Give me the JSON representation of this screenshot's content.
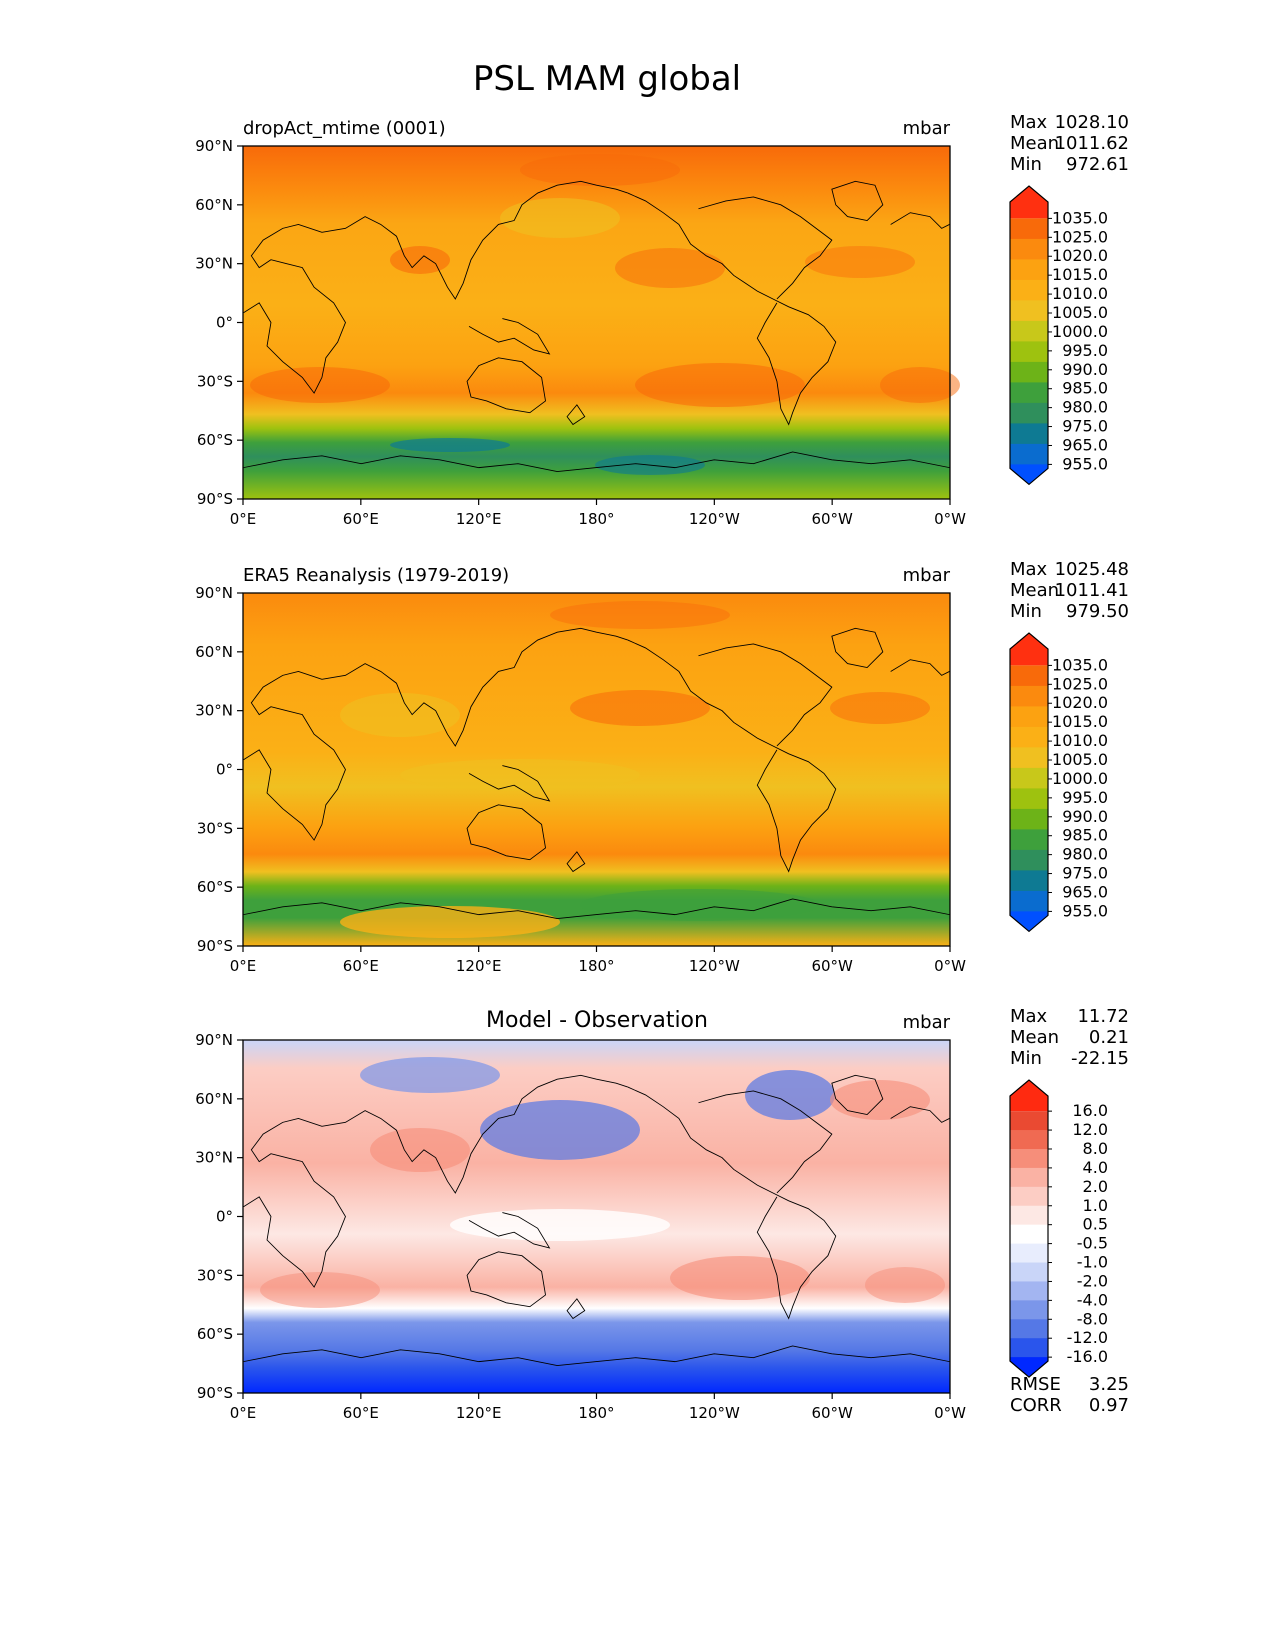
{
  "figure": {
    "title": "PSL MAM global"
  },
  "colors": {
    "abs_bins": [
      "#0050ff",
      "#0a6ccf",
      "#0e7a93",
      "#2f8f5c",
      "#3ea03c",
      "#6db318",
      "#9ec20f",
      "#c8c81a",
      "#f0c020",
      "#fbb016",
      "#fca211",
      "#fb8a0e",
      "#f86a0a",
      "#ff3010"
    ],
    "diff_bins": [
      "#0028ff",
      "#2a55ec",
      "#5578e6",
      "#7b96ea",
      "#a3b5f1",
      "#c9d5f8",
      "#e8edfd",
      "#ffffff",
      "#fde8e4",
      "#fccdc4",
      "#fab2a4",
      "#f68e7a",
      "#f06a52",
      "#ea4a32",
      "#ff2a10"
    ],
    "coast": "#000000"
  },
  "ticks": {
    "lon": [
      "0°E",
      "60°E",
      "120°E",
      "180°",
      "120°W",
      "60°W",
      "0°W"
    ],
    "lat": [
      "90°N",
      "60°N",
      "30°N",
      "0°",
      "30°S",
      "60°S",
      "90°S"
    ]
  },
  "panels": [
    {
      "id": "model",
      "subtitle_left": "dropAct_mtime (0001)",
      "center_title": "",
      "units": "mbar",
      "stats": [
        {
          "label": "Max",
          "value": "1028.10"
        },
        {
          "label": "Mean",
          "value": "1011.62"
        },
        {
          "label": "Min",
          "value": "972.61"
        }
      ],
      "colorbar": [
        "1035.0",
        "1025.0",
        "1020.0",
        "1015.0",
        "1010.0",
        "1005.0",
        "1000.0",
        "995.0",
        "990.0",
        "985.0",
        "980.0",
        "975.0",
        "965.0",
        "955.0"
      ],
      "extra": []
    },
    {
      "id": "obs",
      "subtitle_left": "ERA5 Reanalysis (1979-2019)",
      "center_title": "",
      "units": "mbar",
      "stats": [
        {
          "label": "Max",
          "value": "1025.48"
        },
        {
          "label": "Mean",
          "value": "1011.41"
        },
        {
          "label": "Min",
          "value": "979.50"
        }
      ],
      "colorbar": [
        "1035.0",
        "1025.0",
        "1020.0",
        "1015.0",
        "1010.0",
        "1005.0",
        "1000.0",
        "995.0",
        "990.0",
        "985.0",
        "980.0",
        "975.0",
        "965.0",
        "955.0"
      ],
      "extra": []
    },
    {
      "id": "diff",
      "subtitle_left": "",
      "center_title": "Model - Observation",
      "units": "mbar",
      "stats": [
        {
          "label": "Max",
          "value": "11.72"
        },
        {
          "label": "Mean",
          "value": "0.21"
        },
        {
          "label": "Min",
          "value": "-22.15"
        }
      ],
      "colorbar": [
        "16.0",
        "12.0",
        "8.0",
        "4.0",
        "2.0",
        "1.0",
        "0.5",
        "-0.5",
        "-1.0",
        "-2.0",
        "-4.0",
        "-8.0",
        "-12.0",
        "-16.0"
      ],
      "extra": [
        {
          "label": "RMSE",
          "value": "3.25"
        },
        {
          "label": "CORR",
          "value": "0.97"
        }
      ]
    }
  ]
}
